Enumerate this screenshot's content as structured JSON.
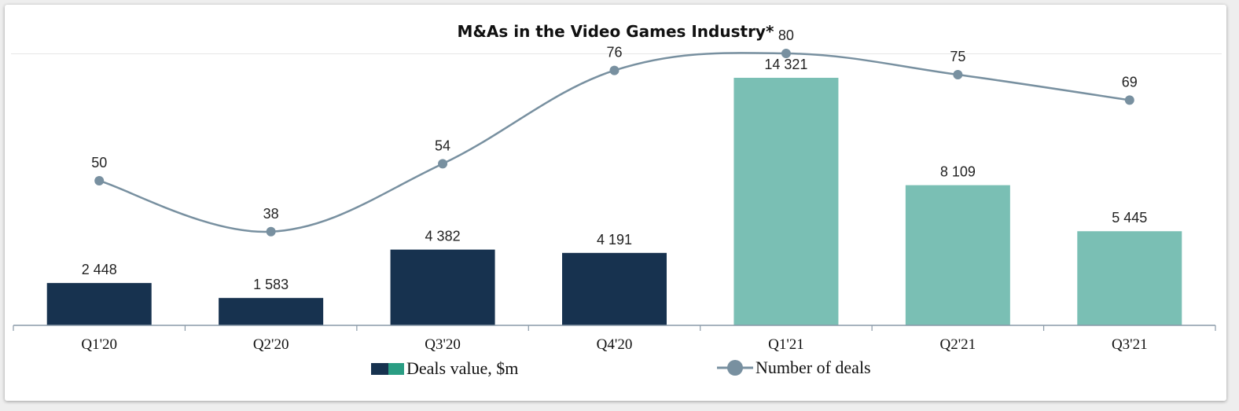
{
  "chart_data": {
    "type": "bar",
    "title": "M&As in the Video Games Industry*",
    "categories": [
      "Q1'20",
      "Q2'20",
      "Q3'20",
      "Q4'20",
      "Q1'21",
      "Q2'21",
      "Q3'21"
    ],
    "series": [
      {
        "name": "Deals value, $m",
        "type": "bar",
        "values": [
          2448,
          1583,
          4382,
          4191,
          14321,
          8109,
          5445
        ],
        "labels": [
          "2 448",
          "1 583",
          "4 382",
          "4 191",
          "14 321",
          "8 109",
          "5 445"
        ],
        "colors": [
          "#17324f",
          "#17324f",
          "#17324f",
          "#17324f",
          "#7abfb4",
          "#7abfb4",
          "#7abfb4"
        ]
      },
      {
        "name": "Number of deals",
        "type": "line",
        "smooth": true,
        "values": [
          50,
          38,
          54,
          76,
          80,
          75,
          69
        ],
        "labels": [
          "50",
          "38",
          "54",
          "76",
          "80",
          "75",
          "69"
        ],
        "color": "#7890a0"
      }
    ],
    "legend_position": "bottom",
    "grid": false,
    "colors": {
      "bar_2020": "#17324f",
      "bar_2021": "#7abfb4",
      "legend_teal": "#2a9d83",
      "line": "#7890a0",
      "axis": "#8a9aa8"
    }
  }
}
